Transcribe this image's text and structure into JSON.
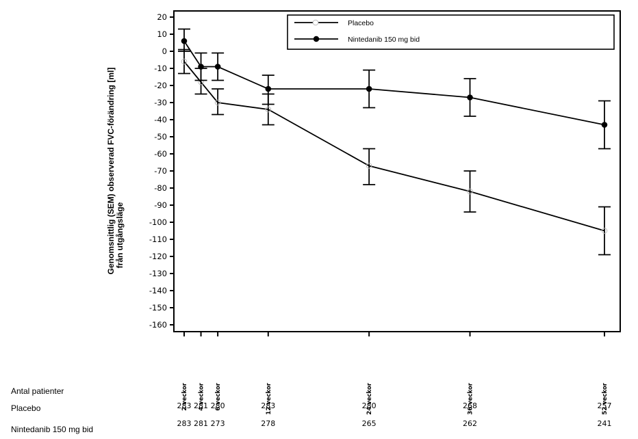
{
  "chart_data": {
    "type": "line",
    "title": "",
    "ylabel_line1": "Genomsnittlig (SEM) observerad FVC-förändring [ml]",
    "ylabel_line2": "från utgångsläge",
    "xlabel": "",
    "ylim": [
      -160,
      20
    ],
    "ytick_step": 10,
    "yticks": [
      20,
      10,
      0,
      -10,
      -20,
      -30,
      -40,
      -50,
      -60,
      -70,
      -80,
      -90,
      -100,
      -110,
      -120,
      -130,
      -140,
      -150,
      -160
    ],
    "x_weeks": [
      2,
      4,
      6,
      12,
      24,
      36,
      52
    ],
    "xlim_weeks": [
      0,
      54
    ],
    "xtick_labels": [
      "2 veckor",
      "4 veckor",
      "6 veckor",
      "12 veckor",
      "24 veckor",
      "36 veckor",
      "52 veckor"
    ],
    "grid": false,
    "legend_position": "top-right",
    "series": [
      {
        "name": "Placebo",
        "marker": "open-circle",
        "values": [
          -6,
          -18,
          -30,
          -34,
          -67,
          -82,
          -105
        ],
        "err_low": [
          -13,
          -25,
          -37,
          -43,
          -78,
          -94,
          -119
        ],
        "err_high": [
          1,
          -10,
          -22,
          -25,
          -57,
          -70,
          -91
        ]
      },
      {
        "name": "Nintedanib 150 mg bid",
        "marker": "filled-circle",
        "values": [
          6,
          -9,
          -9,
          -22,
          -22,
          -27,
          -43
        ],
        "err_low": [
          0,
          -17,
          -17,
          -31,
          -33,
          -38,
          -57
        ],
        "err_high": [
          13,
          -1,
          -1,
          -14,
          -11,
          -16,
          -29
        ]
      }
    ]
  },
  "patients_table": {
    "header": "Antal patienter",
    "rows": [
      {
        "label": "Placebo",
        "counts": [
          "283",
          "281",
          "280",
          "283",
          "280",
          "268",
          "257"
        ]
      },
      {
        "label": "Nintedanib 150 mg bid",
        "counts": [
          "283",
          "281",
          "273",
          "278",
          "265",
          "262",
          "241"
        ]
      }
    ]
  }
}
